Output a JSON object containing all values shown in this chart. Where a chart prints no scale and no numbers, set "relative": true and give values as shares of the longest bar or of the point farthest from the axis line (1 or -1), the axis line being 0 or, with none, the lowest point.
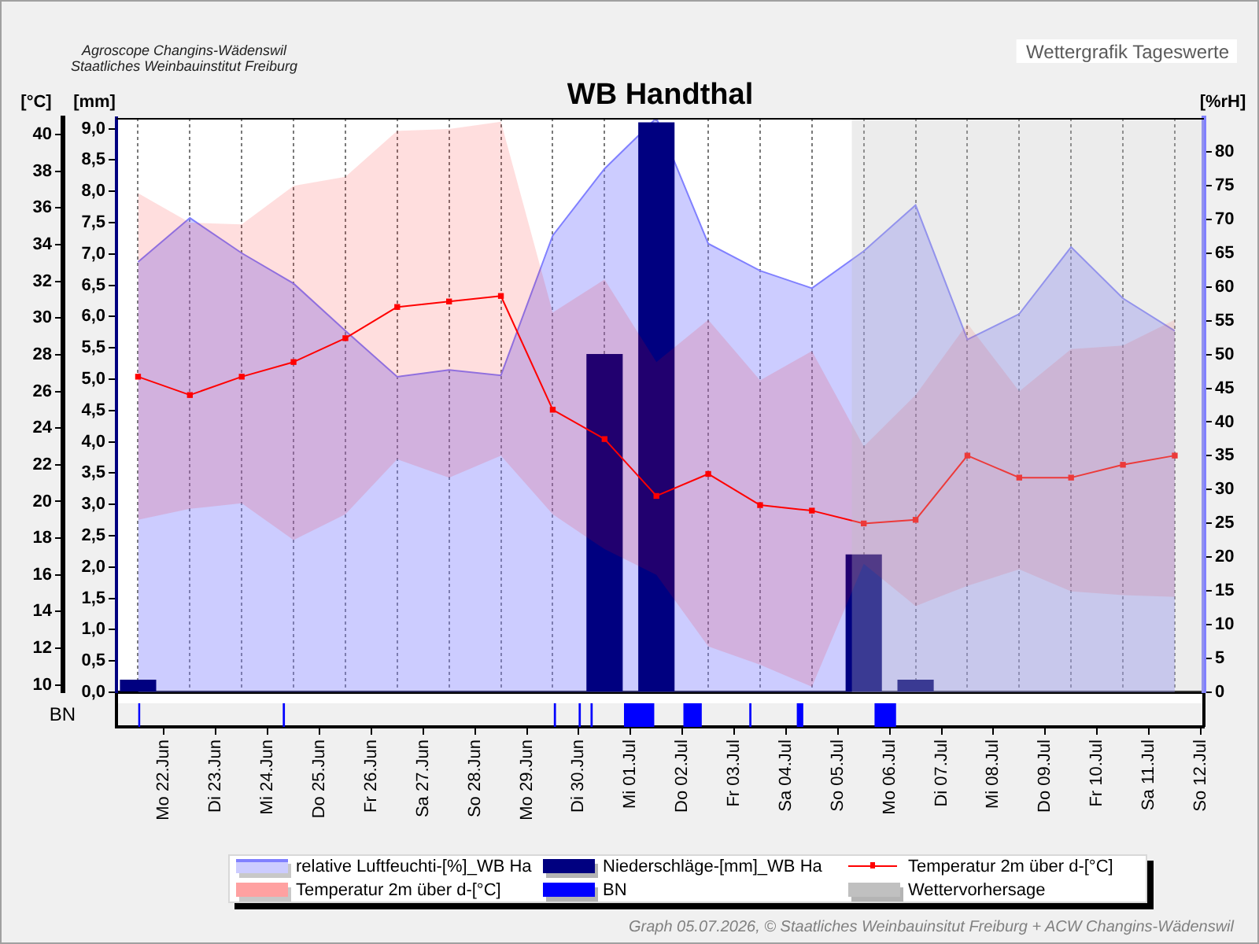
{
  "chart_data": [
    {
      "type": "line",
      "title": "WB Handthal",
      "subtitle": "Wettergrafik Tageswerte",
      "ylabel": "[°C]",
      "y2label": "[mm]",
      "y3label": "[%rH]",
      "annotations": [
        "Agroscope Changins-Wädenswil",
        "Staatliches Weinbauinstitut Freiburg",
        "Graph 05.07.2026, © Staatliches Weinbauinsitut Freiburg + ACW Changins-Wädenswil"
      ],
      "x": [
        "2026-06-21T12:00",
        "2026-06-22T12:00",
        "2026-06-23T12:00",
        "2026-06-24T12:00",
        "2026-06-25T12:00",
        "2026-06-26T12:00",
        "2026-06-27T12:00",
        "2026-06-28T12:00",
        "2026-06-29T12:00",
        "2026-06-30T12:00",
        "2026-07-01T12:00",
        "2026-07-02T12:00",
        "2026-07-03T12:00",
        "2026-07-04T12:00",
        "2026-07-05T12:00",
        "2026-07-06T12:00",
        "2026-07-07T12:00",
        "2026-07-08T12:00",
        "2026-07-09T12:00",
        "2026-07-10T12:00",
        "2026-07-11T12:00"
      ],
      "series": [
        {
          "name": "relative Luftfeuchti-[%]_WB Ha",
          "type": "area",
          "axis": "y3",
          "color": "#8080ff",
          "values": [
            63.7,
            70.2,
            65.0,
            60.5,
            53.5,
            46.7,
            47.7,
            46.9,
            67.6,
            77.5,
            85,
            66.4,
            62.4,
            59.8,
            65.3,
            72.1,
            52.2,
            56.0,
            65.9,
            58.3,
            53.5
          ]
        },
        {
          "name": "Niederschläge-[mm]_WB Ha",
          "type": "bar",
          "axis": "y2",
          "color": "#000080",
          "values": [
            0.2,
            0,
            0,
            0,
            0,
            0,
            0,
            0,
            0,
            5.4,
            9.1,
            0,
            0,
            0,
            2.2,
            0.2,
            0,
            0,
            0,
            0,
            0
          ]
        },
        {
          "name": "Temperatur 2m über d-[°C]",
          "color": "#ff0000",
          "marker": "square",
          "values": [
            26.8,
            25.8,
            26.8,
            27.6,
            28.9,
            30.6,
            30.9,
            31.2,
            25.0,
            23.4,
            20.3,
            21.5,
            19.8,
            19.5,
            18.8,
            19.0,
            22.5,
            21.3,
            21.3,
            22.0,
            22.5
          ],
          "lower": [
            19.0,
            19.6,
            19.9,
            17.9,
            19.3,
            22.3,
            21.3,
            22.5,
            19.3,
            17.4,
            16.0,
            12.1,
            11.1,
            9.9,
            16.6,
            14.3,
            15.4,
            16.3,
            15.1,
            14.9,
            14.8
          ],
          "upper": [
            36.8,
            35.2,
            35.1,
            37.2,
            37.7,
            40.2,
            40.3,
            40.7,
            30.3,
            32.1,
            27.6,
            29.9,
            26.6,
            28.2,
            23.0,
            25.8,
            29.7,
            26.0,
            28.3,
            28.5,
            29.9
          ]
        }
      ],
      "xlim": [
        "2026-06-21T02:00",
        "2026-07-12T01:30"
      ],
      "xticks": [
        {
          "value": "2026-06-22",
          "label": null
        },
        {
          "value": "2026-06-23",
          "label": null
        },
        {
          "value": "2026-06-24",
          "label": null
        },
        {
          "value": "2026-06-25",
          "label": null
        },
        {
          "value": "2026-06-26",
          "label": null
        },
        {
          "value": "2026-06-27",
          "label": null
        },
        {
          "value": "2026-06-28",
          "label": null
        },
        {
          "value": "2026-06-29",
          "label": null
        },
        {
          "value": "2026-06-30",
          "label": null
        },
        {
          "value": "2026-07-01",
          "label": null
        },
        {
          "value": "2026-07-02",
          "label": null
        },
        {
          "value": "2026-07-03",
          "label": null
        },
        {
          "value": "2026-07-04",
          "label": null
        },
        {
          "value": "2026-07-05",
          "label": null
        },
        {
          "value": "2026-07-06",
          "label": null
        },
        {
          "value": "2026-07-07",
          "label": null
        },
        {
          "value": "2026-07-08",
          "label": null
        },
        {
          "value": "2026-07-09",
          "label": null
        },
        {
          "value": "2026-07-10",
          "label": null
        },
        {
          "value": "2026-07-11",
          "label": null
        },
        {
          "value": "2026-07-12",
          "label": null
        }
      ],
      "ylim": [
        9.6,
        40.9
      ],
      "yticks": [
        10,
        12,
        14,
        16,
        18,
        20,
        22,
        24,
        26,
        28,
        30,
        32,
        34,
        36,
        38,
        40
      ],
      "y2lim": [
        0,
        9.17
      ],
      "y2ticks": [
        {
          "value": 0,
          "label": "0,0"
        },
        {
          "value": 0.5,
          "label": "0,5"
        },
        {
          "value": 1,
          "label": "1,0"
        },
        {
          "value": 1.5,
          "label": "1,5"
        },
        {
          "value": 2,
          "label": "2,0"
        },
        {
          "value": 2.5,
          "label": "2,5"
        },
        {
          "value": 3,
          "label": "3,0"
        },
        {
          "value": 3.5,
          "label": "3,5"
        },
        {
          "value": 4,
          "label": "4,0"
        },
        {
          "value": 4.5,
          "label": "4,5"
        },
        {
          "value": 5,
          "label": "5,0"
        },
        {
          "value": 5.5,
          "label": "5,5"
        },
        {
          "value": 6,
          "label": "6,0"
        },
        {
          "value": 6.5,
          "label": "6,5"
        },
        {
          "value": 7,
          "label": "7,0"
        },
        {
          "value": 7.5,
          "label": "7,5"
        },
        {
          "value": 8,
          "label": "8,0"
        },
        {
          "value": 8.5,
          "label": "8,5"
        },
        {
          "value": 9,
          "label": "9,0"
        }
      ],
      "y3lim": [
        0,
        85
      ],
      "y3ticks": [
        0,
        5,
        10,
        15,
        20,
        25,
        30,
        35,
        40,
        45,
        50,
        55,
        60,
        65,
        70,
        75,
        80
      ],
      "bands": [
        {
          "axis": "x",
          "from": "2026-07-05T06:30",
          "to": "2026-07-12T01:30",
          "label": "Wettervorhersage",
          "color": "#c0c0c0"
        }
      ],
      "grid": "x",
      "legend": "bottom",
      "tick_labels": "y"
    },
    {
      "type": "area",
      "relative": true,
      "ylabel": "BN",
      "x": [
        "2026-06-21T12:00",
        "2026-06-21T12:00",
        "2026-06-21T13:00",
        "2026-06-21T13:00",
        "2026-06-24T07:00",
        "2026-06-24T07:00",
        "2026-06-24T08:00",
        "2026-06-24T08:00",
        "2026-06-29T12:30",
        "2026-06-29T12:30",
        "2026-06-29T13:30",
        "2026-06-29T13:30",
        "2026-06-30T00:00",
        "2026-06-30T00:00",
        "2026-06-30T01:00",
        "2026-06-30T01:00",
        "2026-06-30T05:30",
        "2026-06-30T05:30",
        "2026-06-30T06:30",
        "2026-06-30T06:30",
        "2026-06-30T21:00",
        "2026-06-30T21:00",
        "2026-07-01T11:00",
        "2026-07-01T11:00",
        "2026-07-02T00:30",
        "2026-07-02T00:30",
        "2026-07-02T09:00",
        "2026-07-02T09:00",
        "2026-07-03T07:00",
        "2026-07-03T07:00",
        "2026-07-03T08:00",
        "2026-07-03T08:00",
        "2026-07-04T05:00",
        "2026-07-04T05:00",
        "2026-07-04T08:00",
        "2026-07-04T08:00",
        "2026-07-05T17:00",
        "2026-07-05T17:00",
        "2026-07-06T03:00",
        "2026-07-06T03:00"
      ],
      "series": [
        {
          "name": "BN",
          "color": "#0000ff",
          "values": [
            0,
            1,
            1,
            0,
            0,
            1,
            1,
            0,
            0,
            1,
            1,
            0,
            0,
            1,
            1,
            0,
            0,
            1,
            1,
            0,
            0,
            1,
            1,
            0,
            0,
            1,
            1,
            0,
            0,
            1,
            1,
            0,
            0,
            1,
            1,
            0,
            0,
            1,
            1,
            0
          ]
        }
      ],
      "xlim": [
        "2026-06-21T02:00",
        "2026-07-12T01:30"
      ],
      "xticks": [
        {
          "value": "2026-06-22",
          "label": "Mo 22.Jun"
        },
        {
          "value": "2026-06-23",
          "label": "Di 23.Jun"
        },
        {
          "value": "2026-06-24",
          "label": "Mi 24.Jun"
        },
        {
          "value": "2026-06-25",
          "label": "Do 25.Jun"
        },
        {
          "value": "2026-06-26",
          "label": "Fr 26.Jun"
        },
        {
          "value": "2026-06-27",
          "label": "Sa 27.Jun"
        },
        {
          "value": "2026-06-28",
          "label": "So 28.Jun"
        },
        {
          "value": "2026-06-29",
          "label": "Mo 29.Jun"
        },
        {
          "value": "2026-06-30",
          "label": "Di 30.Jun"
        },
        {
          "value": "2026-07-01",
          "label": "Mi 01.Jul"
        },
        {
          "value": "2026-07-02",
          "label": "Do 02.Jul"
        },
        {
          "value": "2026-07-03",
          "label": "Fr 03.Jul"
        },
        {
          "value": "2026-07-04",
          "label": "Sa 04.Jul"
        },
        {
          "value": "2026-07-05",
          "label": "So 05.Jul"
        },
        {
          "value": "2026-07-06",
          "label": "Mo 06.Jul"
        },
        {
          "value": "2026-07-07",
          "label": "Di 07.Jul"
        },
        {
          "value": "2026-07-08",
          "label": "Mi 08.Jul"
        },
        {
          "value": "2026-07-09",
          "label": "Do 09.Jul"
        },
        {
          "value": "2026-07-10",
          "label": "Fr 10.Jul"
        },
        {
          "value": "2026-07-11",
          "label": "Sa 11.Jul"
        },
        {
          "value": "2026-07-12",
          "label": "So 12.Jul"
        }
      ],
      "tick_labels": "x",
      "legend": "bottom"
    }
  ]
}
